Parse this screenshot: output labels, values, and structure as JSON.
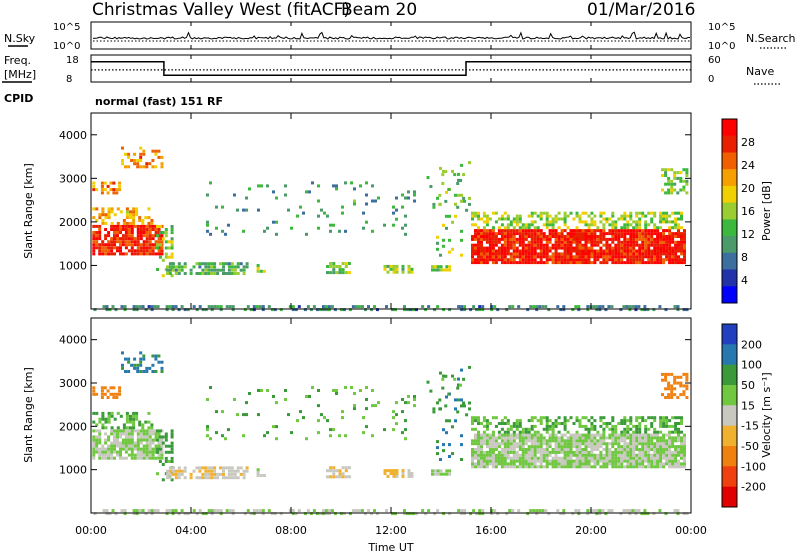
{
  "header": {
    "station": "Christmas Valley West (fitACF)",
    "beam": "Beam 20",
    "date": "01/Mar/2016",
    "cpid_label": "CPID",
    "cpid_text": "normal (fast) 151 RF"
  },
  "noise_panel": {
    "left_label": "N.Sky",
    "right_label": "N.Search",
    "tick_high": "10^5",
    "tick_low": "10^0"
  },
  "freq_panel": {
    "left_label_1": "Freq.",
    "left_label_2": "[MHz]",
    "right_label": "Nave",
    "left_tick_high": "18",
    "left_tick_low": "8",
    "right_tick_high": "60",
    "right_tick_low": "0"
  },
  "colors": {
    "power_scale": [
      "#0000ff",
      "#2233aa",
      "#3c6e9e",
      "#4a9a6a",
      "#3cb83c",
      "#9acd32",
      "#f0d000",
      "#f5a000",
      "#f06000",
      "#e82000",
      "#ff0000"
    ],
    "velocity_scale": [
      "#2040c0",
      "#2878b0",
      "#3a9a3a",
      "#70c840",
      "#c8c8c0",
      "#f0b030",
      "#f08010",
      "#f04010",
      "#e00000"
    ],
    "grid": "#000000"
  },
  "chart_data": [
    {
      "type": "heatmap",
      "title": "Power",
      "xlabel": "Time UT",
      "ylabel": "Slant Range [km]",
      "x_ticks": [
        "00:00",
        "04:00",
        "08:00",
        "12:00",
        "16:00",
        "20:00",
        "00:00"
      ],
      "y_ticks": [
        "1000",
        "2000",
        "3000",
        "4000"
      ],
      "ylim": [
        0,
        4500
      ],
      "colorbar_label": "Power [dB]",
      "colorbar_ticks": [
        "4",
        "8",
        "12",
        "16",
        "20",
        "24",
        "28"
      ],
      "colorbar_range": [
        0,
        30
      ]
    },
    {
      "type": "heatmap",
      "title": "Velocity",
      "xlabel": "Time UT",
      "ylabel": "Slant Range [km]",
      "x_ticks": [
        "00:00",
        "04:00",
        "08:00",
        "12:00",
        "16:00",
        "20:00",
        "00:00"
      ],
      "y_ticks": [
        "1000",
        "2000",
        "3000",
        "4000"
      ],
      "ylim": [
        0,
        4500
      ],
      "colorbar_label": "Velocity [m s-1]",
      "colorbar_ticks": [
        "200",
        "100",
        "50",
        "15",
        "-15",
        "-50",
        "-100",
        "-200"
      ]
    },
    {
      "type": "line",
      "title": "Freq.",
      "ylabel": "[MHz]",
      "series": [
        {
          "name": "Freq.",
          "x": [
            "00:00",
            "02:55",
            "02:55",
            "15:00",
            "15:00",
            "24:00"
          ],
          "values": [
            15.5,
            15.5,
            10.5,
            10.5,
            15.5,
            15.5
          ]
        }
      ],
      "ylim": [
        8,
        18
      ]
    }
  ],
  "axes": {
    "time_label": "Time UT",
    "range_label": "Slant Range [km]",
    "power_label": "Power [dB]",
    "velocity_label": "Velocity [m s⁻¹]"
  }
}
